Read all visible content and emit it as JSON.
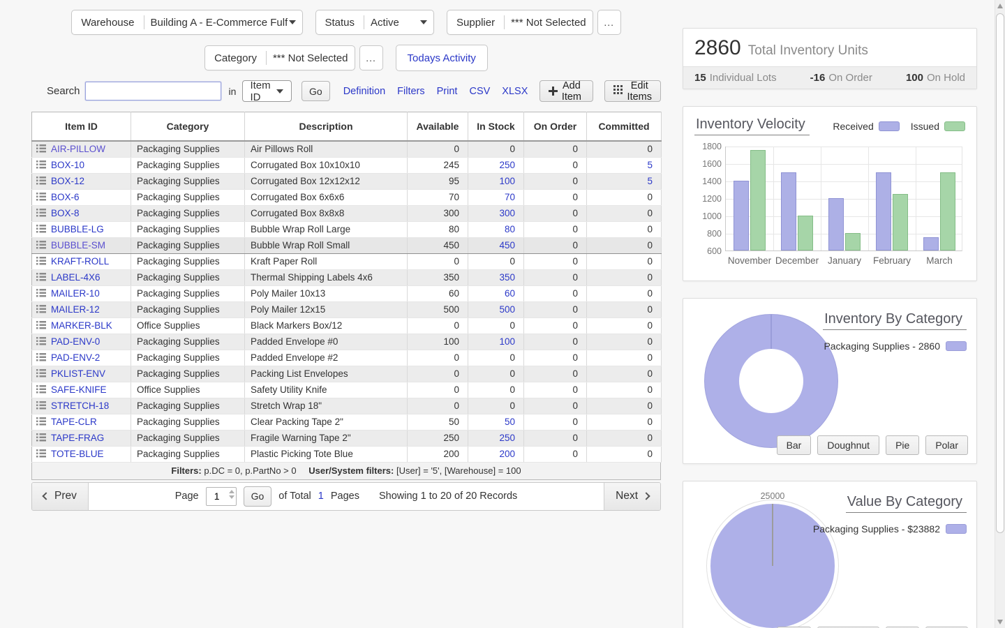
{
  "filters": {
    "warehouse_label": "Warehouse",
    "warehouse_value": "Building A - E-Commerce Fulfillm",
    "status_label": "Status",
    "status_value": "Active",
    "supplier_label": "Supplier",
    "supplier_value": "*** Not Selected",
    "supplier_more": "...",
    "category_label": "Category",
    "category_value": "*** Not Selected",
    "category_more": "...",
    "todays_activity": "Todays Activity"
  },
  "toolbar": {
    "search_label": "Search",
    "in_label": "in",
    "field_value": "Item ID",
    "go": "Go",
    "links": [
      "Definition",
      "Filters",
      "Print",
      "CSV",
      "XLSX"
    ],
    "add_item": "Add Item",
    "edit_items": "Edit Items"
  },
  "table": {
    "columns": [
      "Item ID",
      "Category",
      "Description",
      "Available",
      "In Stock",
      "On Order",
      "Committed"
    ],
    "rows": [
      {
        "id": "AIR-PILLOW",
        "category": "Packaging Supplies",
        "description": "Air Pillows Roll",
        "available": 0,
        "in_stock": 0,
        "on_order": 0,
        "committed": 0,
        "visited": true
      },
      {
        "id": "BOX-10",
        "category": "Packaging Supplies",
        "description": "Corrugated Box 10x10x10",
        "available": 245,
        "in_stock": 250,
        "on_order": 0,
        "committed": 5
      },
      {
        "id": "BOX-12",
        "category": "Packaging Supplies",
        "description": "Corrugated Box 12x12x12",
        "available": 95,
        "in_stock": 100,
        "on_order": 0,
        "committed": 5
      },
      {
        "id": "BOX-6",
        "category": "Packaging Supplies",
        "description": "Corrugated Box 6x6x6",
        "available": 70,
        "in_stock": 70,
        "on_order": 0,
        "committed": 0
      },
      {
        "id": "BOX-8",
        "category": "Packaging Supplies",
        "description": "Corrugated Box 8x8x8",
        "available": 300,
        "in_stock": 300,
        "on_order": 0,
        "committed": 0
      },
      {
        "id": "BUBBLE-LG",
        "category": "Packaging Supplies",
        "description": "Bubble Wrap Roll Large",
        "available": 80,
        "in_stock": 80,
        "on_order": 0,
        "committed": 0
      },
      {
        "id": "BUBBLE-SM",
        "category": "Packaging Supplies",
        "description": "Bubble Wrap Roll Small",
        "available": 450,
        "in_stock": 450,
        "on_order": 0,
        "committed": 0,
        "visited": true,
        "selected": true
      },
      {
        "id": "KRAFT-ROLL",
        "category": "Packaging Supplies",
        "description": "Kraft Paper Roll",
        "available": 0,
        "in_stock": 0,
        "on_order": 0,
        "committed": 0
      },
      {
        "id": "LABEL-4X6",
        "category": "Packaging Supplies",
        "description": "Thermal Shipping Labels 4x6",
        "available": 350,
        "in_stock": 350,
        "on_order": 0,
        "committed": 0
      },
      {
        "id": "MAILER-10",
        "category": "Packaging Supplies",
        "description": "Poly Mailer 10x13",
        "available": 60,
        "in_stock": 60,
        "on_order": 0,
        "committed": 0
      },
      {
        "id": "MAILER-12",
        "category": "Packaging Supplies",
        "description": "Poly Mailer 12x15",
        "available": 500,
        "in_stock": 500,
        "on_order": 0,
        "committed": 0
      },
      {
        "id": "MARKER-BLK",
        "category": "Office Supplies",
        "description": "Black Markers Box/12",
        "available": 0,
        "in_stock": 0,
        "on_order": 0,
        "committed": 0
      },
      {
        "id": "PAD-ENV-0",
        "category": "Packaging Supplies",
        "description": "Padded Envelope #0",
        "available": 100,
        "in_stock": 100,
        "on_order": 0,
        "committed": 0
      },
      {
        "id": "PAD-ENV-2",
        "category": "Packaging Supplies",
        "description": "Padded Envelope #2",
        "available": 0,
        "in_stock": 0,
        "on_order": 0,
        "committed": 0
      },
      {
        "id": "PKLIST-ENV",
        "category": "Packaging Supplies",
        "description": "Packing List Envelopes",
        "available": 0,
        "in_stock": 0,
        "on_order": 0,
        "committed": 0
      },
      {
        "id": "SAFE-KNIFE",
        "category": "Office Supplies",
        "description": "Safety Utility Knife",
        "available": 0,
        "in_stock": 0,
        "on_order": 0,
        "committed": 0
      },
      {
        "id": "STRETCH-18",
        "category": "Packaging Supplies",
        "description": "Stretch Wrap 18\"",
        "available": 0,
        "in_stock": 0,
        "on_order": 0,
        "committed": 0
      },
      {
        "id": "TAPE-CLR",
        "category": "Packaging Supplies",
        "description": "Clear Packing Tape 2\"",
        "available": 50,
        "in_stock": 50,
        "on_order": 0,
        "committed": 0
      },
      {
        "id": "TAPE-FRAG",
        "category": "Packaging Supplies",
        "description": "Fragile Warning Tape 2\"",
        "available": 250,
        "in_stock": 250,
        "on_order": 0,
        "committed": 0
      },
      {
        "id": "TOTE-BLUE",
        "category": "Packaging Supplies",
        "description": "Plastic Picking Tote Blue",
        "available": 200,
        "in_stock": 200,
        "on_order": 0,
        "committed": 0
      }
    ],
    "filters_label": "Filters:",
    "filters_text": "p.DC = 0, p.PartNo > 0",
    "user_filters_label": "User/System filters:",
    "user_filters_text": "[User] = '5', [Warehouse] = 100"
  },
  "pagination": {
    "prev": "Prev",
    "next": "Next",
    "page_label": "Page",
    "page_value": "1",
    "go": "Go",
    "of_total": "of Total",
    "total_pages": "1",
    "pages_label": "Pages",
    "showing": "Showing 1 to 20 of 20 Records"
  },
  "summary": {
    "total_units": "2860",
    "total_label": "Total Inventory Units",
    "lots": "15",
    "lots_label": "Individual Lots",
    "on_order": "-16",
    "on_order_label": "On Order",
    "on_hold": "100",
    "on_hold_label": "On Hold"
  },
  "velocity_chart": {
    "title": "Inventory Velocity"
  },
  "category_chart": {
    "title": "Inventory By Category",
    "legend": "Packaging Supplies - 2860"
  },
  "value_chart": {
    "title": "Value By Category",
    "legend": "Packaging Supplies - $23882",
    "axis_label": "25000"
  },
  "chart_buttons": [
    "Bar",
    "Doughnut",
    "Pie",
    "Polar"
  ],
  "icons": {
    "row_icon": "list-icon",
    "add_item_icon": "plus-icon",
    "edit_items_icon": "grid-icon",
    "select_icon": "chevron-down-icon",
    "prev_icon": "chevron-left-icon",
    "next_icon": "chevron-right-icon"
  },
  "colors": {
    "link_blue": "#2b38c8",
    "visited_purple": "#5a4fcf",
    "received_fill": "#adb0e6",
    "received_border": "#8f93d4",
    "issued_fill": "#a6d5a8",
    "issued_border": "#84bd87",
    "pie_purple": "#aeb0e8",
    "page_background": "#f7f7f7"
  },
  "chart_data": [
    {
      "type": "bar",
      "title": "Inventory Velocity",
      "categories": [
        "November",
        "December",
        "January",
        "February",
        "March"
      ],
      "series": [
        {
          "name": "Received",
          "values": [
            1400,
            1500,
            1200,
            1500,
            750
          ]
        },
        {
          "name": "Issued",
          "values": [
            1750,
            1000,
            800,
            1250,
            1500
          ]
        }
      ],
      "ylim": [
        600,
        1800
      ],
      "ytick_step": 200,
      "grid": true,
      "legend_position": "top-right"
    },
    {
      "type": "pie",
      "variant": "doughnut",
      "title": "Inventory By Category",
      "categories": [
        "Packaging Supplies"
      ],
      "values": [
        2860
      ],
      "legend_position": "right"
    },
    {
      "type": "pie",
      "variant": "polar",
      "title": "Value By Category",
      "categories": [
        "Packaging Supplies"
      ],
      "values": [
        23882
      ],
      "axis_max": 25000,
      "legend_position": "right"
    }
  ]
}
